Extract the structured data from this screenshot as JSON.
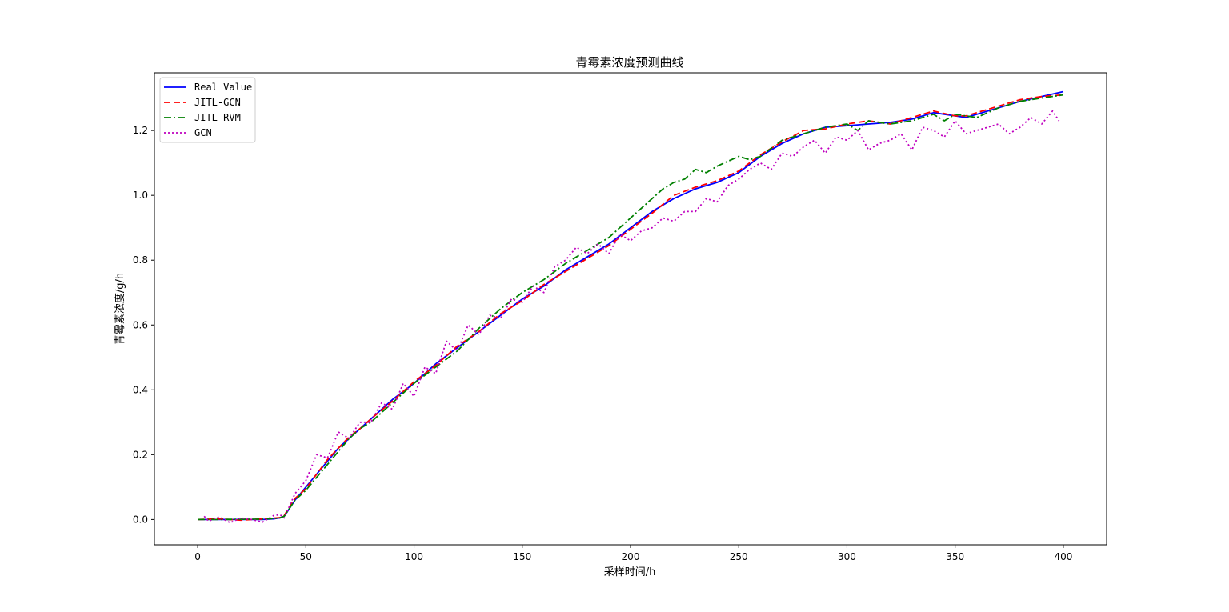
{
  "chart_data": {
    "type": "line",
    "title": "青霉素浓度预测曲线",
    "xlabel": "采样时间/h",
    "ylabel": "青霉素浓度/g/h",
    "xlim": [
      -20,
      420
    ],
    "ylim": [
      -0.078,
      1.378
    ],
    "xticks": [
      0,
      50,
      100,
      150,
      200,
      250,
      300,
      350,
      400
    ],
    "yticks": [
      0.0,
      0.2,
      0.4,
      0.6,
      0.8,
      1.0,
      1.2
    ],
    "xtick_labels": [
      "0",
      "50",
      "100",
      "150",
      "200",
      "250",
      "300",
      "350",
      "400"
    ],
    "ytick_labels": [
      "0.0",
      "0.2",
      "0.4",
      "0.6",
      "0.8",
      "1.0",
      "1.2"
    ],
    "grid": false,
    "legend_position": "top-left",
    "series": [
      {
        "name": "Real Value",
        "color": "#0000ff",
        "style": "solid",
        "x": [
          0,
          10,
          20,
          30,
          35,
          38,
          40,
          42,
          45,
          50,
          55,
          60,
          65,
          70,
          75,
          80,
          90,
          100,
          110,
          120,
          130,
          140,
          150,
          160,
          170,
          180,
          190,
          200,
          210,
          220,
          230,
          240,
          250,
          260,
          270,
          280,
          290,
          300,
          310,
          320,
          330,
          340,
          350,
          355,
          360,
          370,
          380,
          390,
          400
        ],
        "y": [
          0.0,
          0.0,
          0.0,
          0.0,
          0.002,
          0.005,
          0.01,
          0.03,
          0.06,
          0.1,
          0.14,
          0.18,
          0.22,
          0.25,
          0.28,
          0.31,
          0.37,
          0.42,
          0.48,
          0.53,
          0.58,
          0.63,
          0.68,
          0.72,
          0.77,
          0.81,
          0.85,
          0.9,
          0.95,
          0.99,
          1.02,
          1.04,
          1.07,
          1.12,
          1.16,
          1.19,
          1.21,
          1.215,
          1.22,
          1.225,
          1.235,
          1.255,
          1.245,
          1.24,
          1.25,
          1.27,
          1.29,
          1.305,
          1.32
        ]
      },
      {
        "name": "JITL-GCN",
        "color": "#ff0000",
        "style": "dashed",
        "x": [
          0,
          10,
          20,
          30,
          35,
          38,
          40,
          42,
          45,
          50,
          55,
          60,
          65,
          70,
          75,
          80,
          90,
          100,
          110,
          120,
          130,
          140,
          150,
          160,
          170,
          180,
          190,
          200,
          210,
          220,
          230,
          240,
          250,
          260,
          270,
          280,
          290,
          300,
          310,
          320,
          330,
          340,
          350,
          355,
          360,
          370,
          380,
          390,
          400
        ],
        "y": [
          0.0,
          0.002,
          -0.002,
          0.002,
          0.004,
          0.006,
          0.012,
          0.035,
          0.065,
          0.095,
          0.14,
          0.185,
          0.22,
          0.255,
          0.28,
          0.31,
          0.365,
          0.425,
          0.475,
          0.535,
          0.58,
          0.635,
          0.675,
          0.725,
          0.765,
          0.805,
          0.845,
          0.895,
          0.945,
          1.0,
          1.025,
          1.045,
          1.075,
          1.125,
          1.165,
          1.2,
          1.205,
          1.22,
          1.23,
          1.22,
          1.24,
          1.26,
          1.245,
          1.245,
          1.255,
          1.275,
          1.295,
          1.305,
          1.31
        ]
      },
      {
        "name": "JITL-RVM",
        "color": "#008000",
        "style": "dashdot",
        "x": [
          0,
          10,
          20,
          30,
          35,
          38,
          40,
          42,
          45,
          50,
          55,
          60,
          65,
          70,
          75,
          80,
          90,
          100,
          110,
          120,
          130,
          140,
          150,
          160,
          170,
          180,
          190,
          200,
          210,
          215,
          220,
          225,
          230,
          235,
          240,
          250,
          255,
          260,
          270,
          280,
          290,
          300,
          305,
          310,
          320,
          330,
          340,
          345,
          350,
          360,
          370,
          380,
          390,
          400
        ],
        "y": [
          0.0,
          0.0,
          0.001,
          0.001,
          0.003,
          0.005,
          0.01,
          0.03,
          0.06,
          0.09,
          0.13,
          0.17,
          0.21,
          0.25,
          0.28,
          0.3,
          0.36,
          0.42,
          0.47,
          0.52,
          0.59,
          0.65,
          0.7,
          0.74,
          0.79,
          0.83,
          0.87,
          0.93,
          0.99,
          1.02,
          1.04,
          1.05,
          1.08,
          1.07,
          1.09,
          1.12,
          1.11,
          1.12,
          1.17,
          1.19,
          1.21,
          1.22,
          1.2,
          1.23,
          1.22,
          1.23,
          1.25,
          1.23,
          1.25,
          1.24,
          1.27,
          1.29,
          1.3,
          1.31
        ]
      },
      {
        "name": "GCN",
        "color": "#bf00bf",
        "style": "dotted",
        "x": [
          3,
          5,
          10,
          15,
          20,
          25,
          30,
          35,
          38,
          40,
          45,
          50,
          55,
          60,
          65,
          70,
          75,
          80,
          85,
          90,
          95,
          100,
          105,
          110,
          115,
          120,
          125,
          130,
          135,
          140,
          145,
          150,
          155,
          160,
          165,
          170,
          175,
          180,
          185,
          190,
          195,
          200,
          205,
          210,
          215,
          220,
          225,
          230,
          235,
          240,
          245,
          250,
          255,
          260,
          265,
          270,
          275,
          280,
          285,
          290,
          295,
          300,
          305,
          310,
          315,
          320,
          325,
          330,
          335,
          340,
          345,
          350,
          355,
          360,
          365,
          370,
          375,
          380,
          385,
          390,
          395,
          398
        ],
        "y": [
          0.01,
          -0.005,
          0.008,
          -0.01,
          0.005,
          0.0,
          -0.008,
          0.012,
          0.015,
          0.005,
          0.08,
          0.12,
          0.2,
          0.19,
          0.27,
          0.25,
          0.3,
          0.3,
          0.36,
          0.34,
          0.42,
          0.38,
          0.47,
          0.45,
          0.55,
          0.52,
          0.6,
          0.57,
          0.63,
          0.62,
          0.68,
          0.67,
          0.72,
          0.7,
          0.78,
          0.8,
          0.84,
          0.82,
          0.85,
          0.82,
          0.88,
          0.86,
          0.89,
          0.9,
          0.93,
          0.92,
          0.95,
          0.95,
          0.99,
          0.98,
          1.03,
          1.05,
          1.08,
          1.1,
          1.08,
          1.13,
          1.12,
          1.15,
          1.17,
          1.13,
          1.18,
          1.17,
          1.2,
          1.14,
          1.16,
          1.17,
          1.19,
          1.14,
          1.21,
          1.2,
          1.18,
          1.23,
          1.19,
          1.2,
          1.21,
          1.22,
          1.19,
          1.21,
          1.24,
          1.22,
          1.26,
          1.23
        ]
      }
    ]
  }
}
